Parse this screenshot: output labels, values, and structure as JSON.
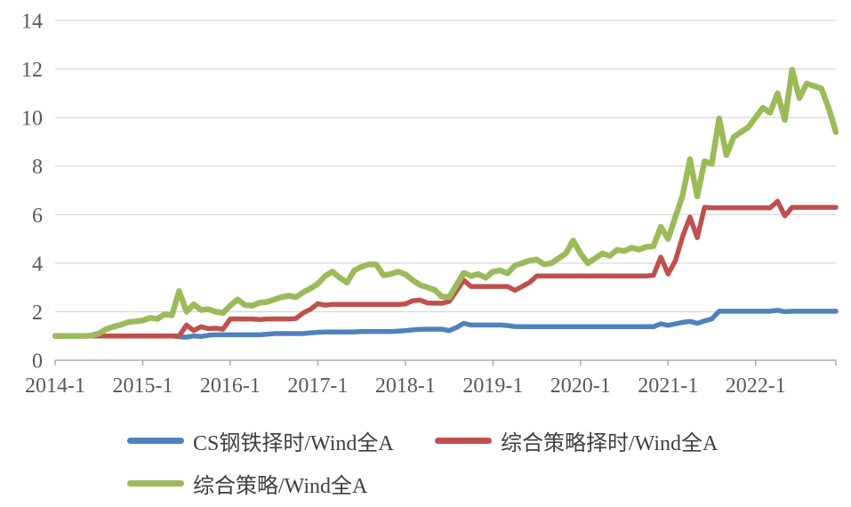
{
  "chart_data": {
    "type": "line",
    "title": "",
    "x_unit": "month",
    "x_start": "2014-1",
    "x_end": "2022-12",
    "x_tick_labels": [
      "2014-1",
      "2015-1",
      "2016-1",
      "2017-1",
      "2018-1",
      "2019-1",
      "2020-1",
      "2021-1",
      "2022-1"
    ],
    "y_ticks": [
      0,
      2,
      4,
      6,
      8,
      10,
      12,
      14
    ],
    "ylim": [
      0,
      14
    ],
    "grid": "horizontal",
    "legend_position": "bottom-left",
    "colors": {
      "grid": "#D9D9D9",
      "axis": "#ABABAB",
      "text": "#595959",
      "background": "#FFFFFF"
    },
    "series": [
      {
        "name": "CS钢铁择时/Wind全A",
        "color": "#4F81BD",
        "values": [
          1.0,
          1.0,
          1.0,
          1.0,
          1.0,
          1.0,
          1.0,
          1.0,
          1.0,
          1.0,
          1.0,
          1.0,
          1.0,
          1.0,
          1.0,
          1.0,
          1.0,
          0.97,
          0.95,
          1.0,
          0.98,
          1.03,
          1.05,
          1.05,
          1.05,
          1.05,
          1.05,
          1.05,
          1.05,
          1.07,
          1.1,
          1.1,
          1.1,
          1.1,
          1.1,
          1.13,
          1.15,
          1.16,
          1.16,
          1.16,
          1.16,
          1.17,
          1.18,
          1.18,
          1.18,
          1.18,
          1.18,
          1.2,
          1.22,
          1.25,
          1.27,
          1.28,
          1.28,
          1.28,
          1.22,
          1.35,
          1.52,
          1.45,
          1.45,
          1.45,
          1.45,
          1.45,
          1.43,
          1.39,
          1.38,
          1.38,
          1.38,
          1.38,
          1.38,
          1.38,
          1.38,
          1.38,
          1.38,
          1.38,
          1.38,
          1.38,
          1.38,
          1.38,
          1.38,
          1.38,
          1.38,
          1.38,
          1.38,
          1.5,
          1.44,
          1.5,
          1.56,
          1.6,
          1.52,
          1.62,
          1.7,
          2.02,
          2.02,
          2.02,
          2.02,
          2.02,
          2.02,
          2.02,
          2.02,
          2.06,
          2.0,
          2.02,
          2.02,
          2.02,
          2.02,
          2.02,
          2.02,
          2.02
        ]
      },
      {
        "name": "综合策略择时/Wind全A",
        "color": "#C0504D",
        "values": [
          1.0,
          1.0,
          1.0,
          1.0,
          1.0,
          1.0,
          1.0,
          1.0,
          1.0,
          1.0,
          1.0,
          1.0,
          1.0,
          1.0,
          1.0,
          1.0,
          1.0,
          1.0,
          1.45,
          1.22,
          1.38,
          1.3,
          1.32,
          1.28,
          1.7,
          1.7,
          1.7,
          1.7,
          1.68,
          1.7,
          1.7,
          1.7,
          1.7,
          1.72,
          1.95,
          2.1,
          2.33,
          2.27,
          2.3,
          2.3,
          2.3,
          2.3,
          2.3,
          2.3,
          2.3,
          2.3,
          2.3,
          2.3,
          2.32,
          2.45,
          2.48,
          2.36,
          2.35,
          2.35,
          2.42,
          2.85,
          3.3,
          3.04,
          3.04,
          3.04,
          3.04,
          3.04,
          3.04,
          2.88,
          3.04,
          3.2,
          3.47,
          3.47,
          3.47,
          3.47,
          3.47,
          3.47,
          3.47,
          3.47,
          3.47,
          3.47,
          3.47,
          3.47,
          3.47,
          3.47,
          3.47,
          3.47,
          3.5,
          4.25,
          3.55,
          4.1,
          5.1,
          5.9,
          5.05,
          6.3,
          6.28,
          6.28,
          6.28,
          6.28,
          6.28,
          6.28,
          6.28,
          6.28,
          6.28,
          6.55,
          5.95,
          6.3,
          6.3,
          6.3,
          6.3,
          6.3,
          6.3,
          6.3
        ]
      },
      {
        "name": "综合策略/Wind全A",
        "color": "#9BBB59",
        "values": [
          1.0,
          1.0,
          1.0,
          1.0,
          1.0,
          1.02,
          1.1,
          1.28,
          1.38,
          1.46,
          1.57,
          1.6,
          1.64,
          1.75,
          1.7,
          1.9,
          1.85,
          2.85,
          2.0,
          2.3,
          2.07,
          2.1,
          2.0,
          1.95,
          2.25,
          2.5,
          2.28,
          2.25,
          2.37,
          2.4,
          2.5,
          2.6,
          2.66,
          2.6,
          2.8,
          2.96,
          3.15,
          3.47,
          3.65,
          3.4,
          3.2,
          3.7,
          3.85,
          3.95,
          3.95,
          3.5,
          3.55,
          3.65,
          3.54,
          3.3,
          3.1,
          3.0,
          2.9,
          2.62,
          2.6,
          3.1,
          3.6,
          3.47,
          3.55,
          3.4,
          3.65,
          3.7,
          3.58,
          3.9,
          4.0,
          4.1,
          4.15,
          3.95,
          4.0,
          4.2,
          4.4,
          4.93,
          4.4,
          4.0,
          4.2,
          4.4,
          4.3,
          4.55,
          4.5,
          4.64,
          4.56,
          4.67,
          4.7,
          5.5,
          5.0,
          5.9,
          6.8,
          8.28,
          6.75,
          8.2,
          8.1,
          9.96,
          8.45,
          9.2,
          9.4,
          9.6,
          10.0,
          10.4,
          10.2,
          11.0,
          9.9,
          11.97,
          10.8,
          11.4,
          11.3,
          11.2,
          10.4,
          9.4
        ]
      }
    ]
  }
}
